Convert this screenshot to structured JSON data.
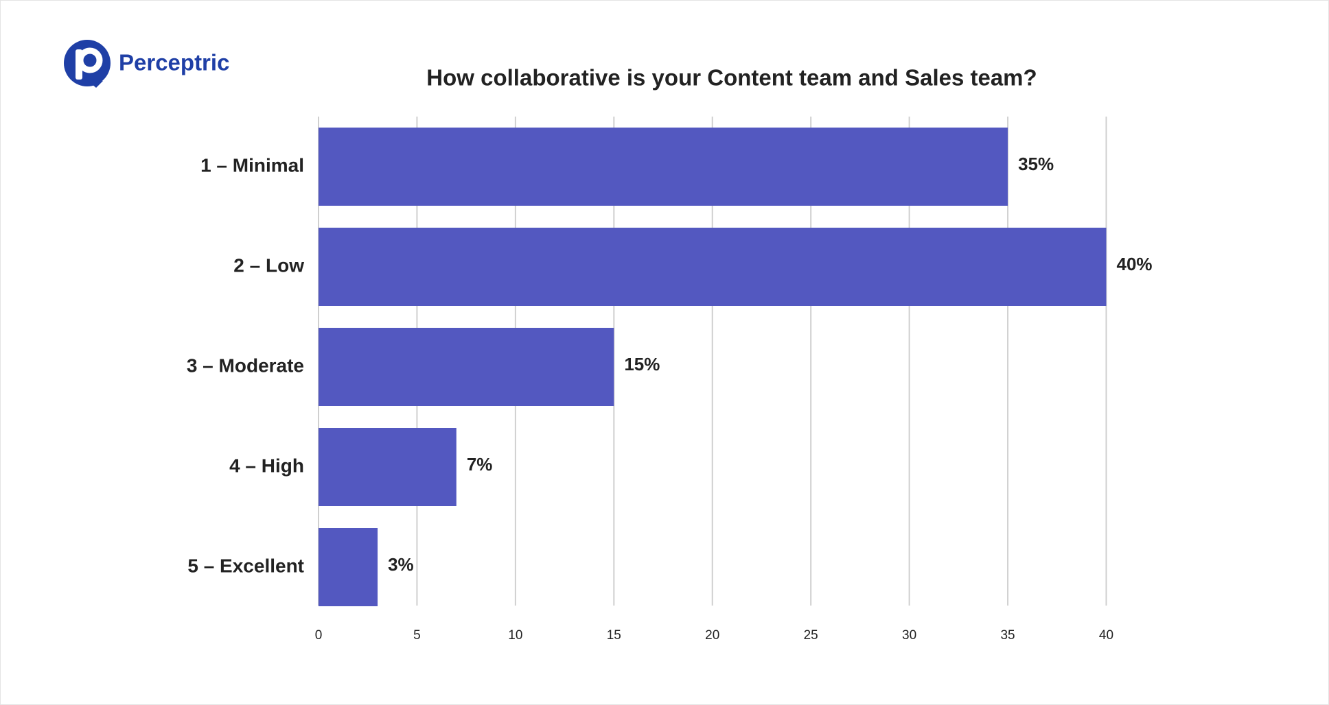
{
  "brand": "Perceptric",
  "chart_data": {
    "type": "bar",
    "orientation": "horizontal",
    "title": "How collaborative is your Content team and Sales team?",
    "categories": [
      "1 – Minimal",
      "2 – Low",
      "3 – Moderate",
      "4 – High",
      "5 – Excellent"
    ],
    "values": [
      35,
      40,
      15,
      7,
      3
    ],
    "value_labels": [
      "35%",
      "40%",
      "15%",
      "7%",
      "3%"
    ],
    "color": "#5358c0",
    "xlim": [
      0,
      40
    ],
    "xticks": [
      0,
      5,
      10,
      15,
      20,
      25,
      30,
      35,
      40
    ],
    "grid": true
  }
}
